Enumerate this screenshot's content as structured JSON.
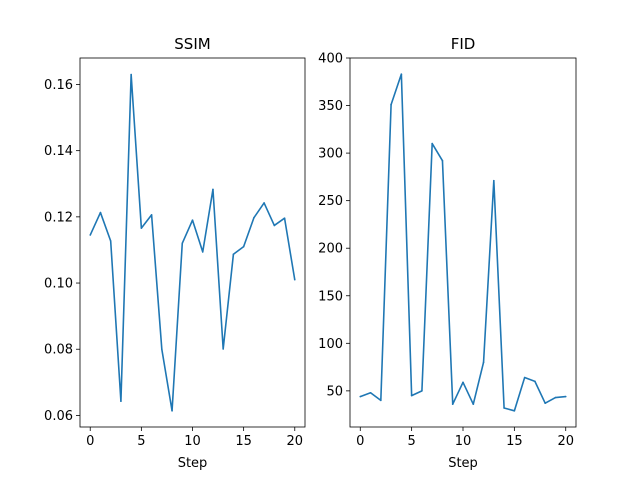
{
  "chart_data": [
    {
      "type": "line",
      "title": "SSIM",
      "xlabel": "Step",
      "ylabel": "",
      "xlim": [
        -1,
        21
      ],
      "ylim": [
        0.0565,
        0.168
      ],
      "xticks": [
        0,
        5,
        10,
        15,
        20
      ],
      "yticks": [
        0.06,
        0.08,
        0.1,
        0.12,
        0.14,
        0.16
      ],
      "ytick_labels": [
        "0.06",
        "0.08",
        "0.10",
        "0.12",
        "0.14",
        "0.16"
      ],
      "color": "#1f77b4",
      "x": [
        0,
        1,
        2,
        3,
        4,
        5,
        6,
        7,
        8,
        9,
        10,
        11,
        12,
        13,
        14,
        15,
        16,
        17,
        18,
        19,
        20
      ],
      "y": [
        0.1145,
        0.1213,
        0.1127,
        0.0643,
        0.163,
        0.1166,
        0.1206,
        0.08,
        0.0614,
        0.112,
        0.119,
        0.1094,
        0.1283,
        0.0801,
        0.1087,
        0.111,
        0.1197,
        0.1242,
        0.1174,
        0.1196,
        0.101
      ]
    },
    {
      "type": "line",
      "title": "FID",
      "xlabel": "Step",
      "ylabel": "",
      "xlim": [
        -1,
        21
      ],
      "ylim": [
        12,
        400
      ],
      "xticks": [
        0,
        5,
        10,
        15,
        20
      ],
      "yticks": [
        50,
        100,
        150,
        200,
        250,
        300,
        350,
        400
      ],
      "ytick_labels": [
        "50",
        "100",
        "150",
        "200",
        "250",
        "300",
        "350",
        "400"
      ],
      "color": "#1f77b4",
      "x": [
        0,
        1,
        2,
        3,
        4,
        5,
        6,
        7,
        8,
        9,
        10,
        11,
        12,
        13,
        14,
        15,
        16,
        17,
        18,
        19,
        20
      ],
      "y": [
        44,
        48,
        40,
        351,
        383,
        45,
        50,
        310,
        292,
        36,
        59,
        36,
        80,
        271,
        32,
        29,
        64,
        60,
        37,
        43,
        44
      ]
    }
  ]
}
